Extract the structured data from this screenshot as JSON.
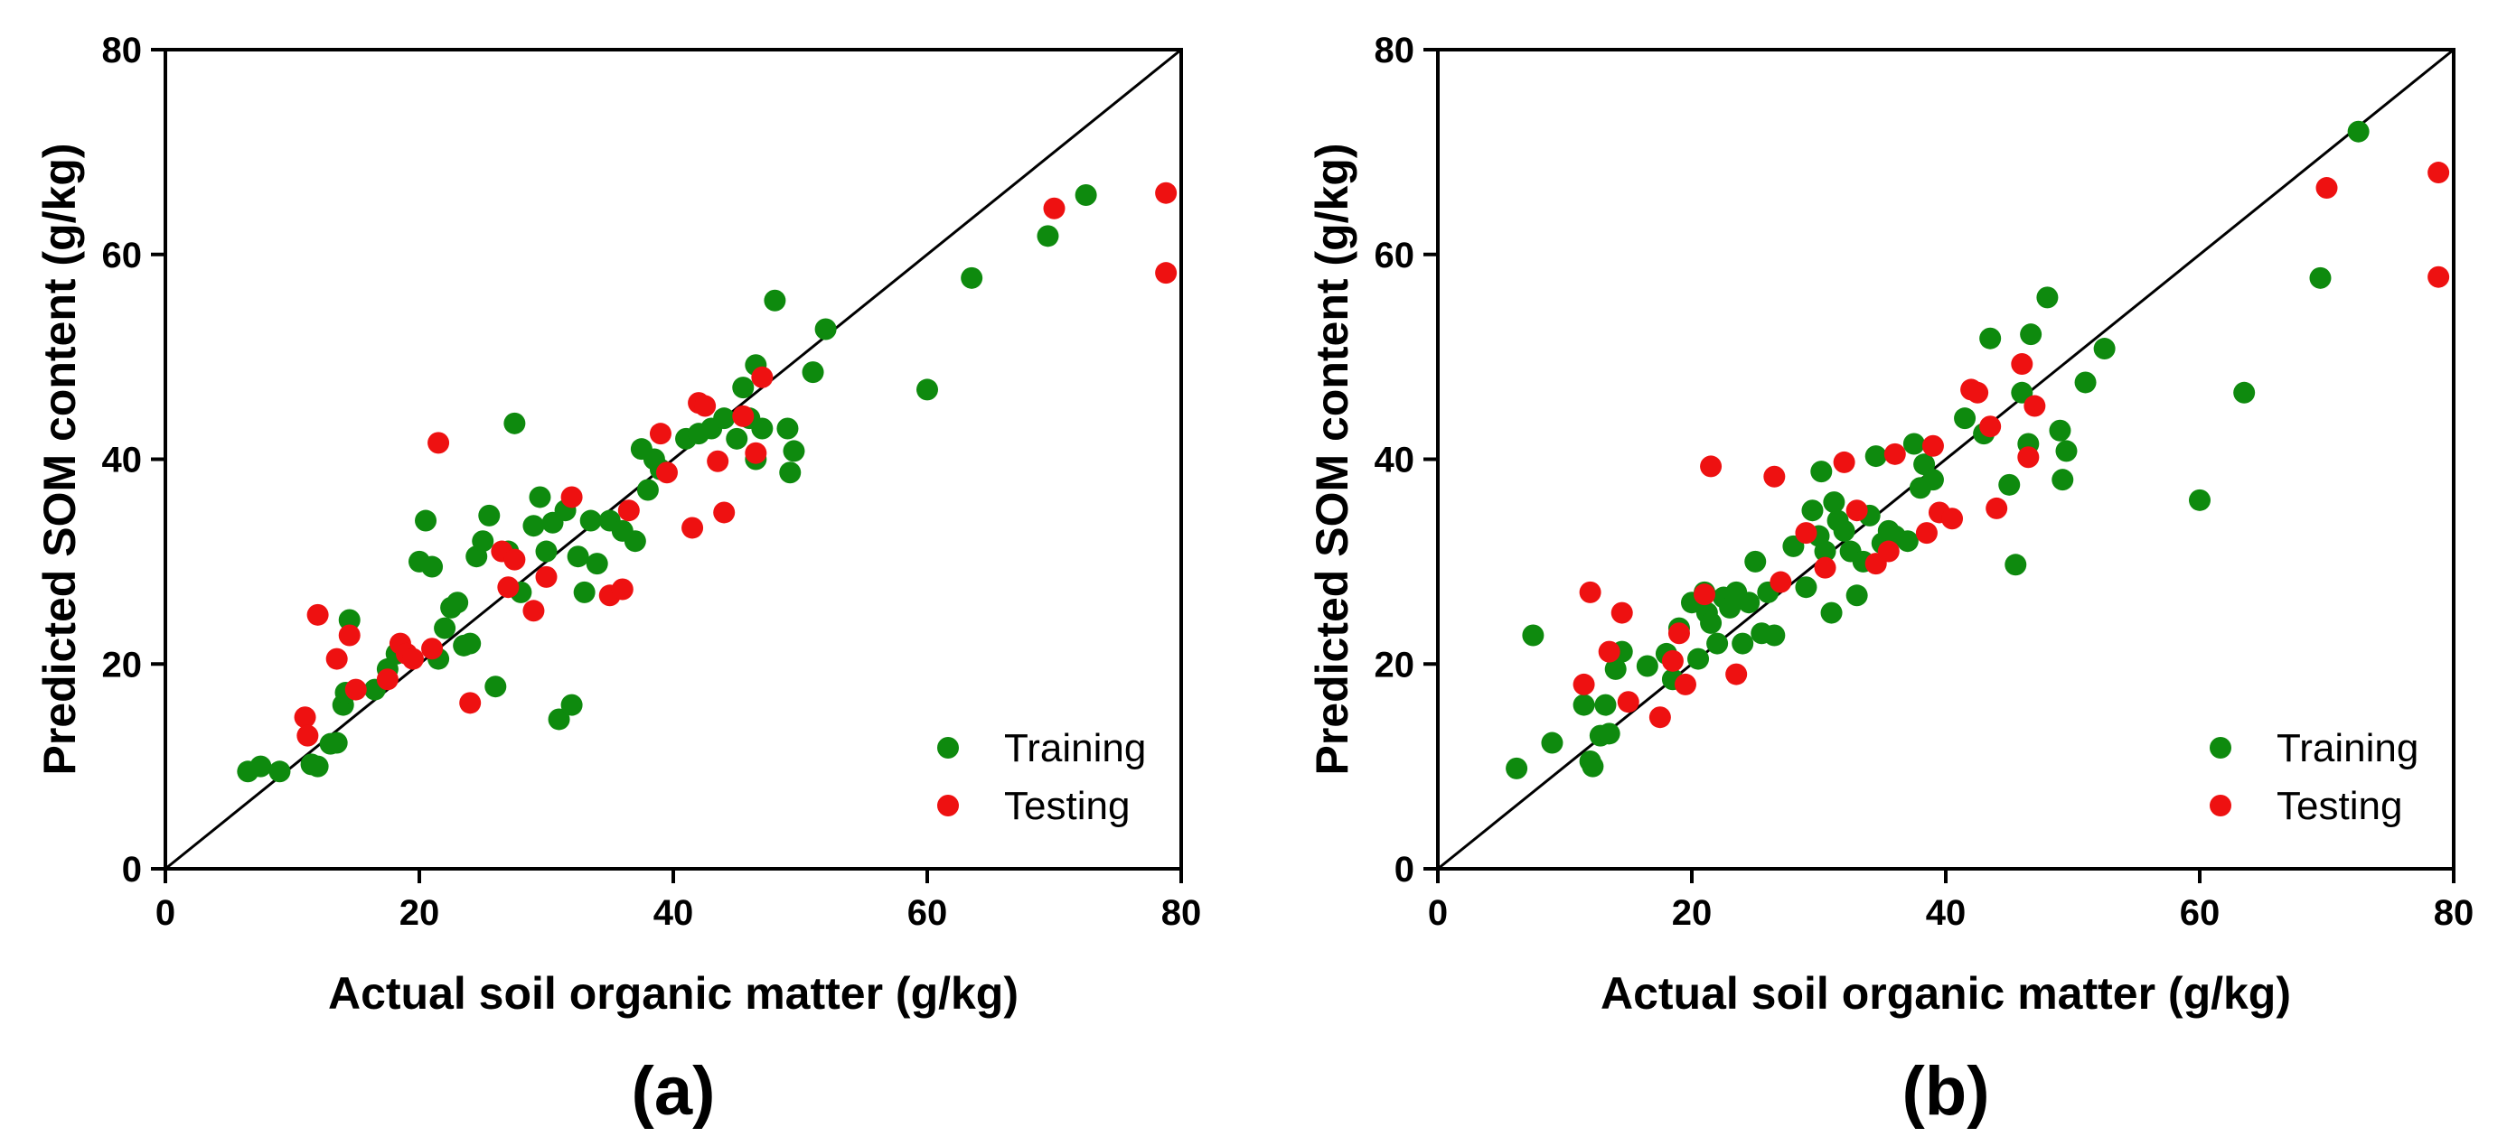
{
  "colors": {
    "training": "#0e8a0e",
    "testing": "#ee1111"
  },
  "chart_data": [
    {
      "type": "scatter",
      "panel_label": "(a)",
      "xlabel": "Actual soil organic matter (g/kg)",
      "ylabel": "Predicted SOM content (g/kg)",
      "xlim": [
        0,
        80
      ],
      "ylim": [
        0,
        80
      ],
      "xticks": [
        "0",
        "20",
        "40",
        "60",
        "80"
      ],
      "yticks": [
        "0",
        "20",
        "40",
        "60",
        "80"
      ],
      "reference_line": "1:1",
      "legend_position": "bottom-right",
      "series": [
        {
          "name": "Training",
          "color": "#0e8a0e",
          "points": [
            [
              6.5,
              9.5
            ],
            [
              7.5,
              10
            ],
            [
              9,
              9.5
            ],
            [
              11.5,
              10.2
            ],
            [
              12,
              10
            ],
            [
              13,
              12.2
            ],
            [
              13.5,
              12.3
            ],
            [
              14,
              16
            ],
            [
              14.2,
              17.2
            ],
            [
              14.5,
              24.3
            ],
            [
              16.5,
              17.5
            ],
            [
              17.5,
              19.5
            ],
            [
              18.2,
              21
            ],
            [
              20,
              30
            ],
            [
              20.5,
              34
            ],
            [
              21,
              29.5
            ],
            [
              21.5,
              20.5
            ],
            [
              22,
              23.5
            ],
            [
              22.5,
              25.5
            ],
            [
              23,
              26
            ],
            [
              23.5,
              21.8
            ],
            [
              24,
              22
            ],
            [
              24.5,
              30.5
            ],
            [
              25,
              32
            ],
            [
              25.5,
              34.5
            ],
            [
              26,
              17.8
            ],
            [
              27,
              31
            ],
            [
              27.5,
              43.5
            ],
            [
              28,
              27
            ],
            [
              29,
              33.5
            ],
            [
              29.5,
              36.3
            ],
            [
              30,
              31
            ],
            [
              30.5,
              33.8
            ],
            [
              31,
              14.6
            ],
            [
              31.5,
              35
            ],
            [
              32,
              16
            ],
            [
              32.5,
              30.5
            ],
            [
              33,
              27
            ],
            [
              33.5,
              34
            ],
            [
              34,
              29.8
            ],
            [
              35,
              34
            ],
            [
              36,
              33
            ],
            [
              37,
              32
            ],
            [
              37.5,
              41
            ],
            [
              38,
              37
            ],
            [
              38.5,
              40
            ],
            [
              39,
              39
            ],
            [
              41,
              42
            ],
            [
              42,
              42.5
            ],
            [
              43,
              43
            ],
            [
              44,
              44
            ],
            [
              45,
              42
            ],
            [
              45.5,
              47
            ],
            [
              46,
              44
            ],
            [
              46.5,
              40
            ],
            [
              46.5,
              49.2
            ],
            [
              47,
              43
            ],
            [
              48,
              55.5
            ],
            [
              49,
              43
            ],
            [
              49.2,
              38.7
            ],
            [
              49.5,
              40.8
            ],
            [
              51,
              48.5
            ],
            [
              52,
              52.7
            ],
            [
              60,
              46.8
            ],
            [
              63.5,
              57.7
            ],
            [
              69.5,
              61.8
            ],
            [
              72.5,
              65.8
            ]
          ]
        },
        {
          "name": "Testing",
          "color": "#ee1111",
          "points": [
            [
              11,
              14.8
            ],
            [
              11.2,
              13
            ],
            [
              12,
              24.8
            ],
            [
              13.5,
              20.5
            ],
            [
              14.5,
              22.8
            ],
            [
              15,
              17.5
            ],
            [
              17.5,
              18.5
            ],
            [
              18.5,
              22
            ],
            [
              19,
              21
            ],
            [
              19.5,
              20.5
            ],
            [
              21,
              21.5
            ],
            [
              21.5,
              41.6
            ],
            [
              24,
              16.2
            ],
            [
              26.5,
              31
            ],
            [
              27,
              27.5
            ],
            [
              27.5,
              30.2
            ],
            [
              29,
              25.2
            ],
            [
              30,
              28.5
            ],
            [
              32,
              36.3
            ],
            [
              35,
              26.7
            ],
            [
              36,
              27.3
            ],
            [
              36.5,
              35
            ],
            [
              39,
              42.5
            ],
            [
              39.5,
              38.7
            ],
            [
              41.5,
              33.3
            ],
            [
              42,
              45.5
            ],
            [
              42.5,
              45.2
            ],
            [
              43.5,
              39.8
            ],
            [
              44,
              34.8
            ],
            [
              45.5,
              44.2
            ],
            [
              46.5,
              40.6
            ],
            [
              47,
              48
            ],
            [
              70,
              64.5
            ],
            [
              78.8,
              66
            ],
            [
              78.8,
              58.2
            ]
          ]
        }
      ]
    },
    {
      "type": "scatter",
      "panel_label": "(b)",
      "xlabel": "Actual soil organic matter (g/kg)",
      "ylabel": "Predicted SOM content (g/kg)",
      "xlim": [
        0,
        80
      ],
      "ylim": [
        0,
        80
      ],
      "xticks": [
        "0",
        "20",
        "40",
        "60",
        "80"
      ],
      "yticks": [
        "0",
        "20",
        "40",
        "60",
        "80"
      ],
      "reference_line": "1:1",
      "legend_position": "bottom-right",
      "series": [
        {
          "name": "Training",
          "color": "#0e8a0e",
          "points": [
            [
              6.2,
              9.8
            ],
            [
              7.5,
              22.8
            ],
            [
              9,
              12.3
            ],
            [
              11.5,
              16
            ],
            [
              12,
              10.5
            ],
            [
              12.2,
              10
            ],
            [
              12.8,
              13
            ],
            [
              13.2,
              16
            ],
            [
              13.5,
              13.2
            ],
            [
              14,
              19.5
            ],
            [
              14.5,
              21.2
            ],
            [
              16.5,
              19.8
            ],
            [
              18,
              21
            ],
            [
              18.5,
              18.5
            ],
            [
              19,
              23.5
            ],
            [
              20,
              26
            ],
            [
              20.5,
              20.5
            ],
            [
              21,
              27
            ],
            [
              21.2,
              25
            ],
            [
              21.5,
              24
            ],
            [
              22,
              22
            ],
            [
              22.5,
              26.5
            ],
            [
              23,
              25.5
            ],
            [
              23.5,
              27
            ],
            [
              24,
              22
            ],
            [
              24.5,
              26
            ],
            [
              25,
              30
            ],
            [
              25.5,
              23
            ],
            [
              26,
              27
            ],
            [
              26.5,
              22.8
            ],
            [
              28,
              31.5
            ],
            [
              29,
              27.5
            ],
            [
              29.5,
              35
            ],
            [
              30,
              32.5
            ],
            [
              30.2,
              38.8
            ],
            [
              30.5,
              31
            ],
            [
              31,
              25
            ],
            [
              31.2,
              35.8
            ],
            [
              31.5,
              34
            ],
            [
              32,
              33
            ],
            [
              32.5,
              31
            ],
            [
              33,
              26.7
            ],
            [
              33.5,
              30
            ],
            [
              34,
              34.5
            ],
            [
              34.5,
              40.3
            ],
            [
              35,
              31.8
            ],
            [
              35.5,
              33
            ],
            [
              36,
              32.5
            ],
            [
              37,
              32
            ],
            [
              37.5,
              41.5
            ],
            [
              38,
              37.2
            ],
            [
              38.3,
              39.5
            ],
            [
              39,
              38
            ],
            [
              41.5,
              44
            ],
            [
              43,
              42.5
            ],
            [
              43.5,
              51.8
            ],
            [
              45,
              37.5
            ],
            [
              45.5,
              29.7
            ],
            [
              46,
              46.5
            ],
            [
              46.5,
              41.5
            ],
            [
              46.7,
              52.2
            ],
            [
              48,
              55.8
            ],
            [
              49,
              42.8
            ],
            [
              49.2,
              38
            ],
            [
              49.5,
              40.8
            ],
            [
              51,
              47.5
            ],
            [
              52.5,
              50.8
            ],
            [
              60,
              36
            ],
            [
              63.5,
              46.5
            ],
            [
              69.5,
              57.7
            ],
            [
              72.5,
              72
            ]
          ]
        },
        {
          "name": "Testing",
          "color": "#ee1111",
          "points": [
            [
              11.5,
              18
            ],
            [
              12,
              27
            ],
            [
              13.5,
              21.2
            ],
            [
              14.5,
              25
            ],
            [
              15,
              16.3
            ],
            [
              17.5,
              14.8
            ],
            [
              18.5,
              20.3
            ],
            [
              19,
              23
            ],
            [
              19.5,
              18
            ],
            [
              21,
              26.8
            ],
            [
              21.5,
              39.3
            ],
            [
              23.5,
              19
            ],
            [
              26.5,
              38.3
            ],
            [
              27,
              28
            ],
            [
              29,
              32.8
            ],
            [
              30.5,
              29.4
            ],
            [
              32,
              39.7
            ],
            [
              33,
              35
            ],
            [
              34.5,
              29.8
            ],
            [
              35.5,
              31
            ],
            [
              36,
              40.5
            ],
            [
              38.5,
              32.8
            ],
            [
              39,
              41.3
            ],
            [
              39.5,
              34.8
            ],
            [
              40.5,
              34.2
            ],
            [
              42,
              46.8
            ],
            [
              42.5,
              46.5
            ],
            [
              43.5,
              43.2
            ],
            [
              44,
              35.2
            ],
            [
              46,
              49.3
            ],
            [
              46.5,
              40.2
            ],
            [
              47,
              45.2
            ],
            [
              70,
              66.5
            ],
            [
              78.8,
              68
            ],
            [
              78.8,
              57.8
            ]
          ]
        }
      ]
    }
  ]
}
